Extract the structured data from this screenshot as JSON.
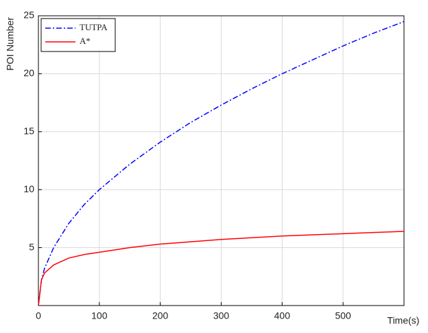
{
  "chart_data": {
    "type": "line",
    "xlabel": "Time(s)",
    "ylabel": "POI Number",
    "x": [
      0,
      5,
      10,
      25,
      50,
      75,
      100,
      150,
      200,
      250,
      300,
      350,
      400,
      450,
      500,
      550,
      600
    ],
    "series": [
      {
        "name": "TUTPA",
        "color": "#0000ff",
        "dash": "dashdot",
        "values": [
          0,
          2.2,
          3.2,
          5,
          7.1,
          8.7,
          10,
          12.2,
          14.1,
          15.8,
          17.3,
          18.7,
          20,
          21.2,
          22.4,
          23.5,
          24.5
        ]
      },
      {
        "name": "A*",
        "color": "#ff0000",
        "dash": "solid",
        "values": [
          0,
          2.2,
          2.8,
          3.5,
          4.1,
          4.4,
          4.6,
          5.0,
          5.3,
          5.5,
          5.7,
          5.85,
          6.0,
          6.1,
          6.2,
          6.3,
          6.4
        ]
      }
    ],
    "xlim": [
      0,
      600
    ],
    "xticks": [
      0,
      100,
      200,
      300,
      400,
      500
    ],
    "ylim": [
      0,
      25
    ],
    "yticks": [
      5,
      10,
      15,
      20,
      25
    ],
    "grid": true,
    "legend": "upper left"
  }
}
